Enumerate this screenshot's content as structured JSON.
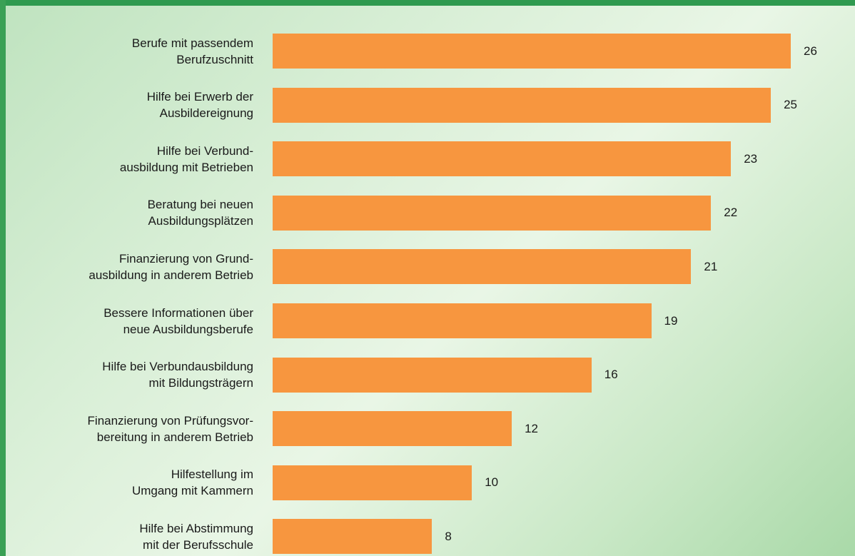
{
  "chart_data": {
    "type": "bar",
    "orientation": "horizontal",
    "categories": [
      "Berufe mit passendem\nBerufzuschnitt",
      "Hilfe bei Erwerb der\nAusbildereignung",
      "Hilfe bei Verbund-\nausbildung mit Betrieben",
      "Beratung bei neuen\nAusbildungsplätzen",
      "Finanzierung von Grund-\nausbildung in anderem Betrieb",
      "Bessere Informationen über\nneue Ausbildungsberufe",
      "Hilfe bei Verbundausbildung\nmit Bildungsträgern",
      "Finanzierung von Prüfungsvor-\nbereitung in anderem Betrieb",
      "Hilfestellung im\nUmgang mit Kammern",
      "Hilfe bei Abstimmung\nmit der Berufsschule"
    ],
    "values": [
      26,
      25,
      23,
      22,
      21,
      19,
      16,
      12,
      10,
      8
    ],
    "color": "#f7963f"
  }
}
